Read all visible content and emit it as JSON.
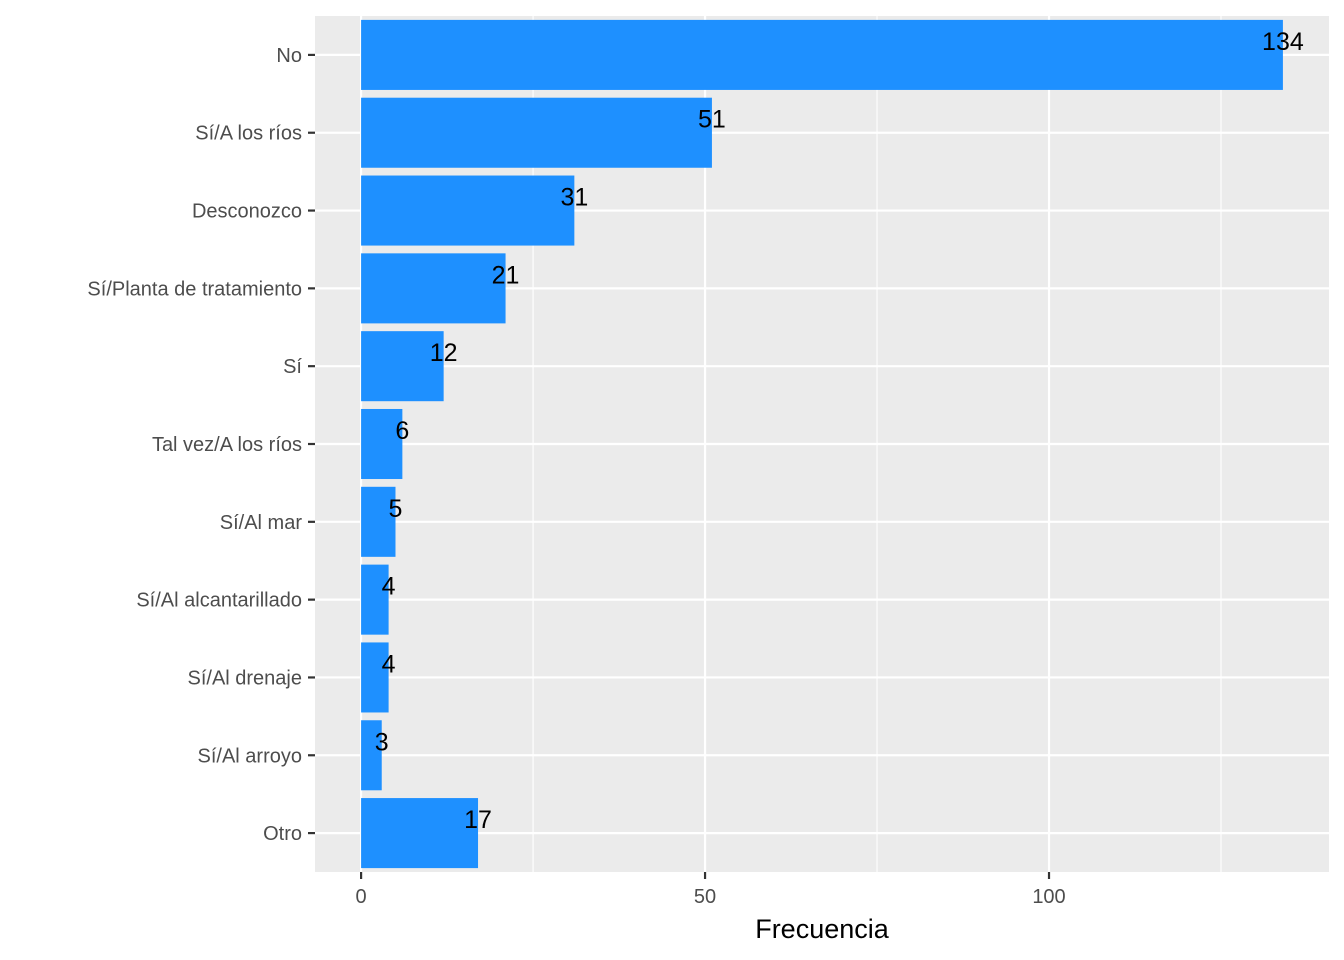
{
  "chart_data": {
    "type": "bar",
    "orientation": "horizontal",
    "categories": [
      "No",
      "Sí/A los ríos",
      "Desconozco",
      "Sí/Planta de tratamiento",
      "Sí",
      "Tal vez/A los ríos",
      "Sí/Al mar",
      "Sí/Al alcantarillado",
      "Sí/Al drenaje",
      "Sí/Al arroyo",
      "Otro"
    ],
    "values": [
      134,
      51,
      31,
      21,
      12,
      6,
      5,
      4,
      4,
      3,
      17
    ],
    "data_labels": [
      "134",
      "51",
      "31",
      "21",
      "12",
      "6",
      "5",
      "4",
      "4",
      "3",
      "17"
    ],
    "xlabel": "Frecuencia",
    "ylabel": "",
    "xlim": [
      -6.7,
      140.7
    ],
    "x_ticks": [
      0,
      50,
      100
    ],
    "x_tick_labels": [
      "0",
      "50",
      "100"
    ],
    "x_minor_ticks": [
      25,
      75,
      125
    ],
    "grid": true,
    "legend": "none",
    "colors": {
      "bar": "#1E90FF",
      "panel": "#EBEBEB",
      "grid": "#FFFFFF",
      "tick_text": "#4D4D4D",
      "axis_ticks": "#333333"
    }
  }
}
